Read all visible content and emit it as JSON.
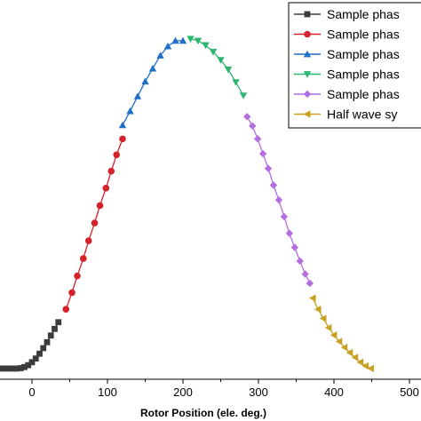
{
  "chart_data": {
    "type": "line",
    "xlabel": "Rotor Position (ele. deg.)",
    "ylabel": "",
    "xlim": [
      -40,
      500
    ],
    "ylim": [
      0,
      1
    ],
    "xticks": [
      0,
      100,
      200,
      300,
      400,
      500
    ],
    "legend_position": "top-right",
    "series": [
      {
        "name": "Sample phas",
        "color": "#3c3c3c",
        "marker": "square",
        "x": [
          -40,
          -35,
          -30,
          -25,
          -20,
          -15,
          -10,
          -5,
          0,
          5,
          10,
          15,
          20,
          25,
          30,
          35
        ],
        "y": [
          0.005,
          0.005,
          0.005,
          0.005,
          0.005,
          0.006,
          0.009,
          0.014,
          0.022,
          0.032,
          0.045,
          0.06,
          0.076,
          0.094,
          0.112,
          0.13
        ]
      },
      {
        "name": "Sample phas",
        "color": "#d6202a",
        "marker": "circle",
        "x": [
          45,
          53,
          60,
          68,
          75,
          83,
          90,
          98,
          105,
          112,
          120
        ],
        "y": [
          0.165,
          0.21,
          0.255,
          0.302,
          0.35,
          0.398,
          0.445,
          0.492,
          0.538,
          0.582,
          0.625
        ]
      },
      {
        "name": "Sample phas",
        "color": "#1f6fc9",
        "marker": "triangle-up",
        "x": [
          120,
          130,
          140,
          150,
          160,
          170,
          180,
          190,
          200
        ],
        "y": [
          0.662,
          0.7,
          0.74,
          0.78,
          0.815,
          0.85,
          0.875,
          0.89,
          0.89
        ]
      },
      {
        "name": "Sample phas",
        "color": "#2eb571",
        "marker": "triangle-down",
        "x": [
          210,
          220,
          230,
          240,
          250,
          260,
          270,
          280
        ],
        "y": [
          0.895,
          0.89,
          0.878,
          0.86,
          0.838,
          0.812,
          0.778,
          0.742
        ]
      },
      {
        "name": "Sample phas",
        "color": "#b46ee0",
        "marker": "diamond",
        "x": [
          285,
          292,
          299,
          306,
          313,
          320,
          327,
          334,
          341,
          348,
          355,
          362,
          368
        ],
        "y": [
          0.685,
          0.66,
          0.625,
          0.585,
          0.545,
          0.5,
          0.46,
          0.415,
          0.37,
          0.332,
          0.295,
          0.26,
          0.235
        ]
      },
      {
        "name": "Half wave sy",
        "color": "#c9a021",
        "marker": "triangle-left",
        "x": [
          372,
          379,
          386,
          393,
          400,
          407,
          414,
          421,
          428,
          435,
          442,
          449
        ],
        "y": [
          0.195,
          0.165,
          0.14,
          0.115,
          0.095,
          0.078,
          0.062,
          0.048,
          0.035,
          0.022,
          0.012,
          0.005
        ]
      }
    ]
  }
}
